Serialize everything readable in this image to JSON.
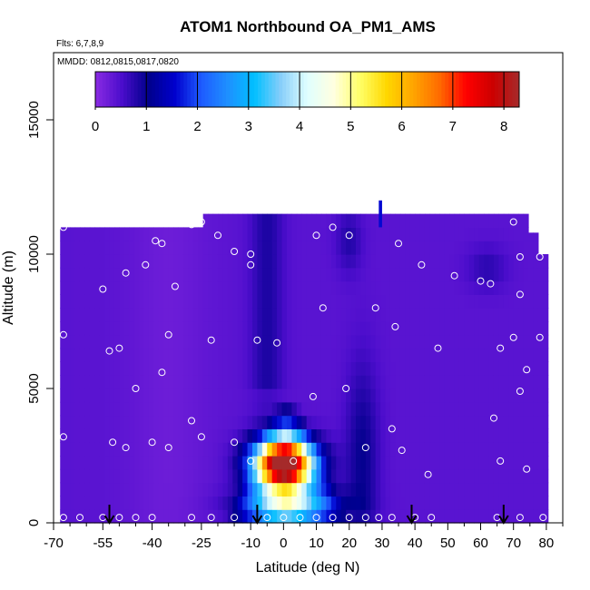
{
  "chart_data": {
    "type": "heatmap",
    "title": "ATOM1 Northbound OA_PM1_AMS",
    "subtitle_flights": "Flts: 6,7,8,9",
    "subtitle_dates": "MMDD: 0812,0815,0817,0820",
    "xlabel": "Latitude (deg N)",
    "ylabel": "Altitude (m)",
    "xlim": [
      -70,
      85
    ],
    "ylim": [
      0,
      17500
    ],
    "x_ticks": [
      -70,
      -55,
      -40,
      -25,
      -10,
      0,
      10,
      20,
      30,
      40,
      50,
      60,
      70,
      80
    ],
    "x_tick_labels": [
      "-70",
      "-55",
      "-40",
      "-25",
      "-10",
      "0",
      "10",
      "20",
      "30",
      "40",
      "50",
      "60",
      "70",
      "80"
    ],
    "x_minor_ticks": [
      -65,
      -60,
      -50,
      -45,
      -35,
      -30,
      -20,
      -15,
      -5,
      5,
      15,
      25,
      35,
      45,
      55,
      65,
      75,
      85
    ],
    "y_ticks": [
      0,
      5000,
      10000,
      15000
    ],
    "y_tick_labels": [
      "0",
      "5000",
      "10000",
      "15000"
    ],
    "colorbar": {
      "min": 0,
      "max": 8.3,
      "ticks": [
        0,
        1,
        2,
        3,
        4,
        5,
        6,
        7,
        8
      ],
      "tick_labels": [
        "0",
        "1",
        "2",
        "3",
        "4",
        "5",
        "6",
        "7",
        "8"
      ],
      "colors": [
        "#8a2be2",
        "#4b0dcc",
        "#00008b",
        "#0000cd",
        "#1e5bff",
        "#1e90ff",
        "#00bfff",
        "#87cefa",
        "#e0ffff",
        "#ffffe0",
        "#ffff66",
        "#ffd700",
        "#ffa500",
        "#ff6a00",
        "#ff0000",
        "#cc0000",
        "#a52a2a"
      ]
    },
    "grid": false,
    "field": {
      "lat_range": [
        -68,
        80
      ],
      "lat_top_full": [
        -68,
        -25
      ],
      "alt_top_west": 11000,
      "alt_top_mid": 11500,
      "background_value": 0.4,
      "features": [
        {
          "name": "plume",
          "lat": 0,
          "alt": 2200,
          "peak": 8.0
        },
        {
          "name": "shoulder-south",
          "lat": -5,
          "alt": 2000,
          "peak": 5.5
        },
        {
          "name": "shoulder-north",
          "lat": 8,
          "alt": 1500,
          "peak": 4.5
        },
        {
          "name": "plume-base",
          "lat": 0,
          "alt": 800,
          "peak": 3.8
        },
        {
          "name": "upper-column",
          "lat": -5,
          "alt": 9000,
          "peak": 1.0
        },
        {
          "name": "north-column",
          "lat": 27,
          "alt": 4000,
          "peak": 1.1
        }
      ]
    },
    "samples": [
      [
        -67,
        11000
      ],
      [
        -67,
        7000
      ],
      [
        -67,
        3200
      ],
      [
        -67,
        200
      ],
      [
        -62,
        200
      ],
      [
        -55,
        8700
      ],
      [
        -53,
        6400
      ],
      [
        -50,
        6500
      ],
      [
        -48,
        9300
      ],
      [
        -42,
        9600
      ],
      [
        -39,
        10500
      ],
      [
        -37,
        10400
      ],
      [
        -33,
        8800
      ],
      [
        -35,
        7000
      ],
      [
        -37,
        5600
      ],
      [
        -28,
        11100
      ],
      [
        -25,
        11200
      ],
      [
        -20,
        10700
      ],
      [
        -15,
        10100
      ],
      [
        -10,
        10000
      ],
      [
        -8,
        6800
      ],
      [
        -2,
        6700
      ],
      [
        -22,
        6800
      ],
      [
        -45,
        5000
      ],
      [
        -40,
        3000
      ],
      [
        -35,
        2800
      ],
      [
        -28,
        3800
      ],
      [
        -25,
        3200
      ],
      [
        -15,
        3000
      ],
      [
        -10,
        2300
      ],
      [
        3,
        2300
      ],
      [
        -5,
        200
      ],
      [
        0,
        200
      ],
      [
        5,
        200
      ],
      [
        10,
        200
      ],
      [
        15,
        200
      ],
      [
        20,
        200
      ],
      [
        25,
        200
      ],
      [
        29,
        200
      ],
      [
        33,
        200
      ],
      [
        40,
        200
      ],
      [
        45,
        200
      ],
      [
        -45,
        200
      ],
      [
        -40,
        200
      ],
      [
        -28,
        200
      ],
      [
        -22,
        200
      ],
      [
        -15,
        200
      ],
      [
        -55,
        200
      ],
      [
        -50,
        200
      ],
      [
        -48,
        2800
      ],
      [
        -52,
        3000
      ],
      [
        10,
        10700
      ],
      [
        15,
        11000
      ],
      [
        20,
        10700
      ],
      [
        35,
        10400
      ],
      [
        42,
        9600
      ],
      [
        52,
        9200
      ],
      [
        60,
        9000
      ],
      [
        63,
        8900
      ],
      [
        70,
        11200
      ],
      [
        72,
        9900
      ],
      [
        78,
        9900
      ],
      [
        72,
        8500
      ],
      [
        66,
        6500
      ],
      [
        70,
        6900
      ],
      [
        78,
        6900
      ],
      [
        74,
        5700
      ],
      [
        72,
        4900
      ],
      [
        64,
        3900
      ],
      [
        66,
        2300
      ],
      [
        74,
        2000
      ],
      [
        79,
        200
      ],
      [
        72,
        200
      ],
      [
        65,
        200
      ],
      [
        12,
        8000
      ],
      [
        28,
        8000
      ],
      [
        34,
        7300
      ],
      [
        47,
        6500
      ],
      [
        19,
        5000
      ],
      [
        9,
        4700
      ],
      [
        33,
        3500
      ],
      [
        36,
        2700
      ],
      [
        44,
        1800
      ],
      [
        25,
        2800
      ],
      [
        -10,
        9600
      ]
    ],
    "flight_markers_lat": [
      -53,
      -8,
      39,
      67
    ]
  }
}
